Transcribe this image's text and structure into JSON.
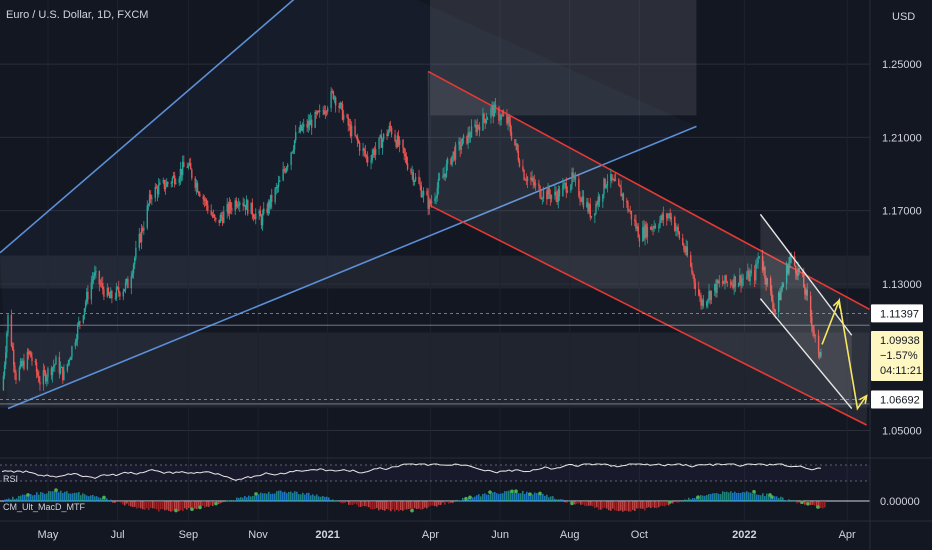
{
  "header": {
    "symbol_title": "Euro / U.S. Dollar, 1D, FXCM",
    "currency": "USD"
  },
  "colors": {
    "background": "#131722",
    "up": "#26a69a",
    "down": "#ef5350",
    "channel_up": "#5b8fd6",
    "channel_down": "#e53935",
    "white": "#e8e8e8",
    "yellow": "#f5e663"
  },
  "chart_data": {
    "type": "candlestick",
    "y_axis": {
      "ticks": [
        {
          "label": "1.25000",
          "value": 1.25
        },
        {
          "label": "1.21000",
          "value": 1.21
        },
        {
          "label": "1.17000",
          "value": 1.17
        },
        {
          "label": "1.13000",
          "value": 1.13
        },
        {
          "label": "1.05000",
          "value": 1.05
        }
      ],
      "range": [
        1.035,
        1.285
      ]
    },
    "x_axis": {
      "ticks": [
        {
          "label": "May",
          "date": "2020-05-01"
        },
        {
          "label": "Jul",
          "date": "2020-07-01"
        },
        {
          "label": "Sep",
          "date": "2020-09-01"
        },
        {
          "label": "Nov",
          "date": "2020-11-01"
        },
        {
          "label": "2021",
          "date": "2021-01-01"
        },
        {
          "label": "Apr",
          "date": "2021-04-01"
        },
        {
          "label": "Jun",
          "date": "2021-06-01"
        },
        {
          "label": "Aug",
          "date": "2021-08-01"
        },
        {
          "label": "Oct",
          "date": "2021-10-01"
        },
        {
          "label": "2022",
          "date": "2022-01-01"
        },
        {
          "label": "Apr",
          "date": "2022-04-01"
        }
      ],
      "range": [
        "2020-03-20",
        "2022-04-21"
      ]
    },
    "price_path": [
      [
        "2020-03-22",
        1.072
      ],
      [
        "2020-03-27",
        1.112
      ],
      [
        "2020-04-03",
        1.08
      ],
      [
        "2020-04-15",
        1.092
      ],
      [
        "2020-04-24",
        1.077
      ],
      [
        "2020-05-08",
        1.087
      ],
      [
        "2020-05-15",
        1.08
      ],
      [
        "2020-05-29",
        1.11
      ],
      [
        "2020-06-10",
        1.135
      ],
      [
        "2020-06-24",
        1.122
      ],
      [
        "2020-07-10",
        1.13
      ],
      [
        "2020-07-31",
        1.18
      ],
      [
        "2020-08-14",
        1.185
      ],
      [
        "2020-08-31",
        1.195
      ],
      [
        "2020-09-25",
        1.163
      ],
      [
        "2020-10-15",
        1.177
      ],
      [
        "2020-11-04",
        1.165
      ],
      [
        "2020-11-20",
        1.185
      ],
      [
        "2020-12-05",
        1.212
      ],
      [
        "2020-12-25",
        1.222
      ],
      [
        "2021-01-06",
        1.234
      ],
      [
        "2021-01-20",
        1.215
      ],
      [
        "2021-02-05",
        1.198
      ],
      [
        "2021-02-25",
        1.215
      ],
      [
        "2021-03-15",
        1.192
      ],
      [
        "2021-03-31",
        1.173
      ],
      [
        "2021-04-20",
        1.2
      ],
      [
        "2021-05-10",
        1.215
      ],
      [
        "2021-05-25",
        1.225
      ],
      [
        "2021-06-08",
        1.218
      ],
      [
        "2021-06-22",
        1.19
      ],
      [
        "2021-07-07",
        1.18
      ],
      [
        "2021-07-20",
        1.178
      ],
      [
        "2021-08-03",
        1.187
      ],
      [
        "2021-08-20",
        1.168
      ],
      [
        "2021-09-03",
        1.188
      ],
      [
        "2021-09-15",
        1.18
      ],
      [
        "2021-10-01",
        1.157
      ],
      [
        "2021-10-20",
        1.165
      ],
      [
        "2021-10-28",
        1.168
      ],
      [
        "2021-11-12",
        1.145
      ],
      [
        "2021-11-24",
        1.12
      ],
      [
        "2021-12-10",
        1.13
      ],
      [
        "2021-12-31",
        1.133
      ],
      [
        "2022-01-10",
        1.135
      ],
      [
        "2022-01-14",
        1.147
      ],
      [
        "2022-01-28",
        1.115
      ],
      [
        "2022-02-10",
        1.144
      ],
      [
        "2022-02-20",
        1.134
      ],
      [
        "2022-03-01",
        1.11
      ],
      [
        "2022-03-07",
        1.089
      ],
      [
        "2022-03-10",
        1.099
      ]
    ],
    "horizontal_levels": [
      1.1139,
      1.1075,
      1.0669,
      1.0645
    ],
    "zones": [
      {
        "from": 1.1455,
        "to": 1.1275
      },
      {
        "from": 1.1035,
        "to": 1.0625
      }
    ],
    "current_price": {
      "value": 1.09938,
      "change": "−1.57%",
      "countdown": "04:11:21"
    },
    "price_labels": [
      {
        "label": "1.11397",
        "value": 1.11397
      },
      {
        "label": "1.06692",
        "value": 1.06692
      }
    ],
    "ascending_channel": {
      "upper": [
        [
          "2020-03-20",
          1.147
        ],
        [
          "2021-01-08",
          1.305
        ]
      ],
      "lower": [
        [
          "2020-03-27",
          1.062
        ],
        [
          "2021-11-20",
          1.216
        ]
      ]
    },
    "descending_channel": {
      "upper": [
        [
          "2021-03-30",
          1.246
        ],
        [
          "2022-04-21",
          1.116
        ]
      ],
      "lower": [
        [
          "2021-03-31",
          1.173
        ],
        [
          "2022-04-18",
          1.053
        ]
      ]
    },
    "wedge": {
      "upper": [
        [
          "2022-01-15",
          1.168
        ],
        [
          "2022-04-05",
          1.102
        ]
      ],
      "lower": [
        [
          "2022-01-15",
          1.122
        ],
        [
          "2022-04-05",
          1.062
        ]
      ]
    },
    "projection": [
      [
        "2022-03-10",
        1.097
      ],
      [
        "2022-03-25",
        1.121
      ],
      [
        "2022-04-10",
        1.062
      ],
      [
        "2022-04-18",
        1.069
      ]
    ],
    "rsi": {
      "label": "RSI"
    },
    "oscillator": {
      "label": "CM_Ult_MacD_MTF",
      "zero_label": "0.00000"
    }
  }
}
